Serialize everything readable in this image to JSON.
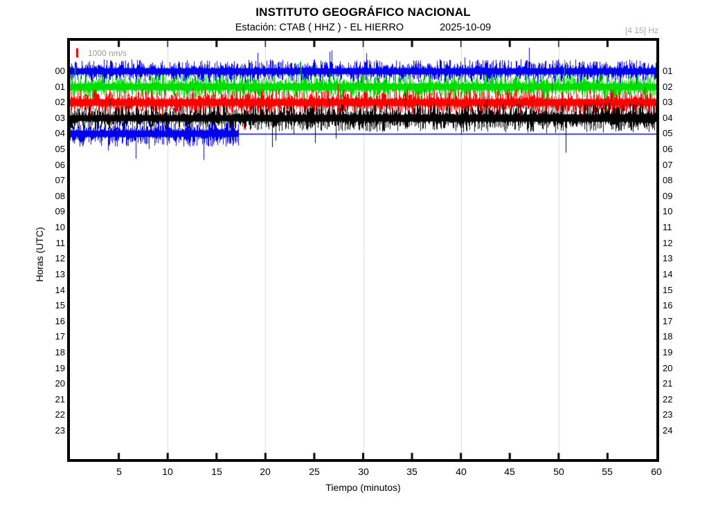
{
  "header": {
    "title": "INSTITUTO GEOGRÁFICO NACIONAL",
    "station_line": "Estación:  CTAB ( HHZ ) - EL HIERRO",
    "date": "2025-10-09",
    "filter_band": "[4 15] Hz"
  },
  "chart_data": {
    "type": "line",
    "chart_kind": "seismogram-helicorder",
    "title": "INSTITUTO GEOGRÁFICO NACIONAL",
    "subtitle": "Estación:  CTAB ( HHZ ) - EL HIERRO",
    "date": "2025-10-09",
    "filter_band": "[4 15] Hz",
    "amplitude_scale_label": "1000 nm/s",
    "amplitude_scale_color": "#ff0000",
    "xlabel": "Tiempo (minutos)",
    "ylabel": "Horas (UTC)",
    "xlim": [
      0,
      60
    ],
    "x_ticks": [
      5,
      10,
      15,
      20,
      25,
      30,
      35,
      40,
      45,
      50,
      55,
      60
    ],
    "grid_minutes": [
      10,
      20,
      30,
      40,
      50
    ],
    "grid_color": "#d9d9d9",
    "left_hour_labels": [
      "00",
      "01",
      "02",
      "03",
      "04",
      "05",
      "06",
      "07",
      "08",
      "09",
      "10",
      "11",
      "12",
      "13",
      "14",
      "15",
      "16",
      "17",
      "18",
      "19",
      "20",
      "21",
      "22",
      "23"
    ],
    "right_hour_labels": [
      "01",
      "02",
      "03",
      "04",
      "05",
      "06",
      "07",
      "08",
      "09",
      "10",
      "11",
      "12",
      "13",
      "14",
      "15",
      "16",
      "17",
      "18",
      "19",
      "20",
      "21",
      "22",
      "23",
      "24"
    ],
    "rows": [
      {
        "hour": "00",
        "color": "#0000ee",
        "start_min": 0,
        "end_min": 60,
        "half_amp": 11.5,
        "spike_prob": 0.02,
        "seed": 101,
        "spikes": [
          {
            "min": 26.8,
            "up": 30
          },
          {
            "min": 47.0,
            "up": 34
          }
        ]
      },
      {
        "hour": "01",
        "color": "#00dd00",
        "start_min": 0,
        "end_min": 60,
        "half_amp": 12.5,
        "spike_prob": 0.012,
        "seed": 202,
        "spikes": [
          {
            "min": 23.6,
            "up": 38
          }
        ]
      },
      {
        "hour": "02",
        "color": "#ff0000",
        "start_min": 0,
        "end_min": 60,
        "half_amp": 13.0,
        "spike_prob": 0.012,
        "seed": 303,
        "spikes": []
      },
      {
        "hour": "03",
        "color": "#000000",
        "start_min": 0,
        "end_min": 60,
        "half_amp": 11.5,
        "half_amp_end": 15.0,
        "spike_prob": 0.014,
        "seed": 404,
        "spikes": [
          {
            "min": 20.7,
            "down": 42
          },
          {
            "min": 50.7,
            "down": 50
          }
        ]
      },
      {
        "hour": "04",
        "color": "#0000ee",
        "start_min": 0,
        "end_min": 17.2,
        "half_amp": 12.5,
        "spike_prob": 0.016,
        "seed": 505,
        "flat_to_min": 60,
        "spikes": [
          {
            "min": 6.7,
            "down": 36
          },
          {
            "min": 13.7,
            "down": 38
          }
        ]
      }
    ]
  }
}
